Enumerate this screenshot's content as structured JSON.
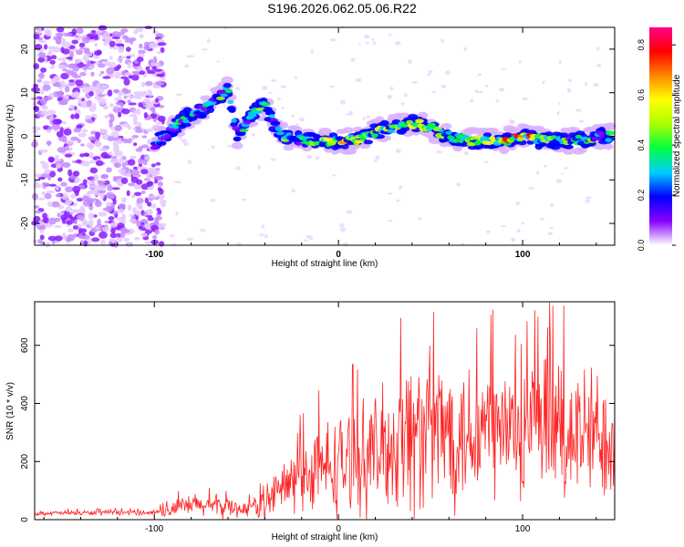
{
  "title": "S196.2026.062.05.06.R22",
  "chart_data": [
    {
      "type": "heatmap",
      "xlabel": "Height of straight line (km)",
      "ylabel": "Frequency (Hz)",
      "xlim": [
        -165,
        150
      ],
      "ylim": [
        -25,
        25
      ],
      "x_ticks": [
        -100,
        0,
        100
      ],
      "y_ticks": [
        -20,
        -10,
        0,
        10,
        20
      ],
      "colorbar": {
        "label": "Normalized spectral amplitude",
        "range": [
          0.0,
          0.87
        ],
        "ticks": [
          0.0,
          0.2,
          0.4,
          0.6,
          0.8
        ],
        "colors": [
          "#ffffff",
          "#d9b3ff",
          "#8800ff",
          "#0000ff",
          "#00ccff",
          "#00ff44",
          "#aaff00",
          "#ffff00",
          "#ff8800",
          "#ff0000",
          "#ff0088"
        ]
      },
      "ridge": {
        "x": [
          -100,
          -90,
          -80,
          -70,
          -60,
          -55,
          -50,
          -45,
          -40,
          -35,
          -30,
          -20,
          -10,
          0,
          10,
          20,
          30,
          40,
          50,
          60,
          70,
          80,
          90,
          100,
          110,
          120,
          130,
          140,
          145
        ],
        "y": [
          -2,
          2,
          5,
          7,
          11,
          0,
          3,
          6,
          7,
          3,
          0,
          -1,
          -1,
          -1,
          -1,
          1,
          2,
          3,
          2,
          0,
          -1,
          -1,
          -1,
          0,
          -1,
          -1,
          -1,
          0,
          0
        ],
        "amp": [
          0.3,
          0.35,
          0.4,
          0.35,
          0.45,
          0.3,
          0.4,
          0.45,
          0.35,
          0.3,
          0.4,
          0.45,
          0.5,
          0.55,
          0.6,
          0.5,
          0.55,
          0.5,
          0.45,
          0.4,
          0.45,
          0.5,
          0.6,
          0.7,
          0.5,
          0.45,
          0.5,
          0.4,
          0.35
        ]
      },
      "noise_region_x": [
        -165,
        -95
      ]
    },
    {
      "type": "line",
      "xlabel": "Height of straight line (km)",
      "ylabel": "SNR (10 * v/v)",
      "xlim": [
        -165,
        150
      ],
      "ylim": [
        0,
        750
      ],
      "x_ticks": [
        -100,
        0,
        100
      ],
      "y_ticks": [
        0,
        200,
        400,
        600
      ],
      "color": "#ff2222",
      "envelope": {
        "x": [
          -165,
          -100,
          -90,
          -80,
          -60,
          -50,
          -40,
          -30,
          -20,
          -10,
          0,
          10,
          20,
          30,
          35,
          50,
          60,
          80,
          100,
          120,
          140,
          150
        ],
        "mean": [
          22,
          25,
          35,
          50,
          45,
          35,
          60,
          110,
          150,
          170,
          190,
          210,
          230,
          260,
          300,
          300,
          310,
          310,
          300,
          300,
          290,
          290
        ],
        "spread": [
          8,
          10,
          30,
          40,
          40,
          25,
          60,
          100,
          130,
          160,
          180,
          190,
          200,
          230,
          300,
          280,
          270,
          260,
          250,
          260,
          240,
          200
        ]
      }
    }
  ]
}
